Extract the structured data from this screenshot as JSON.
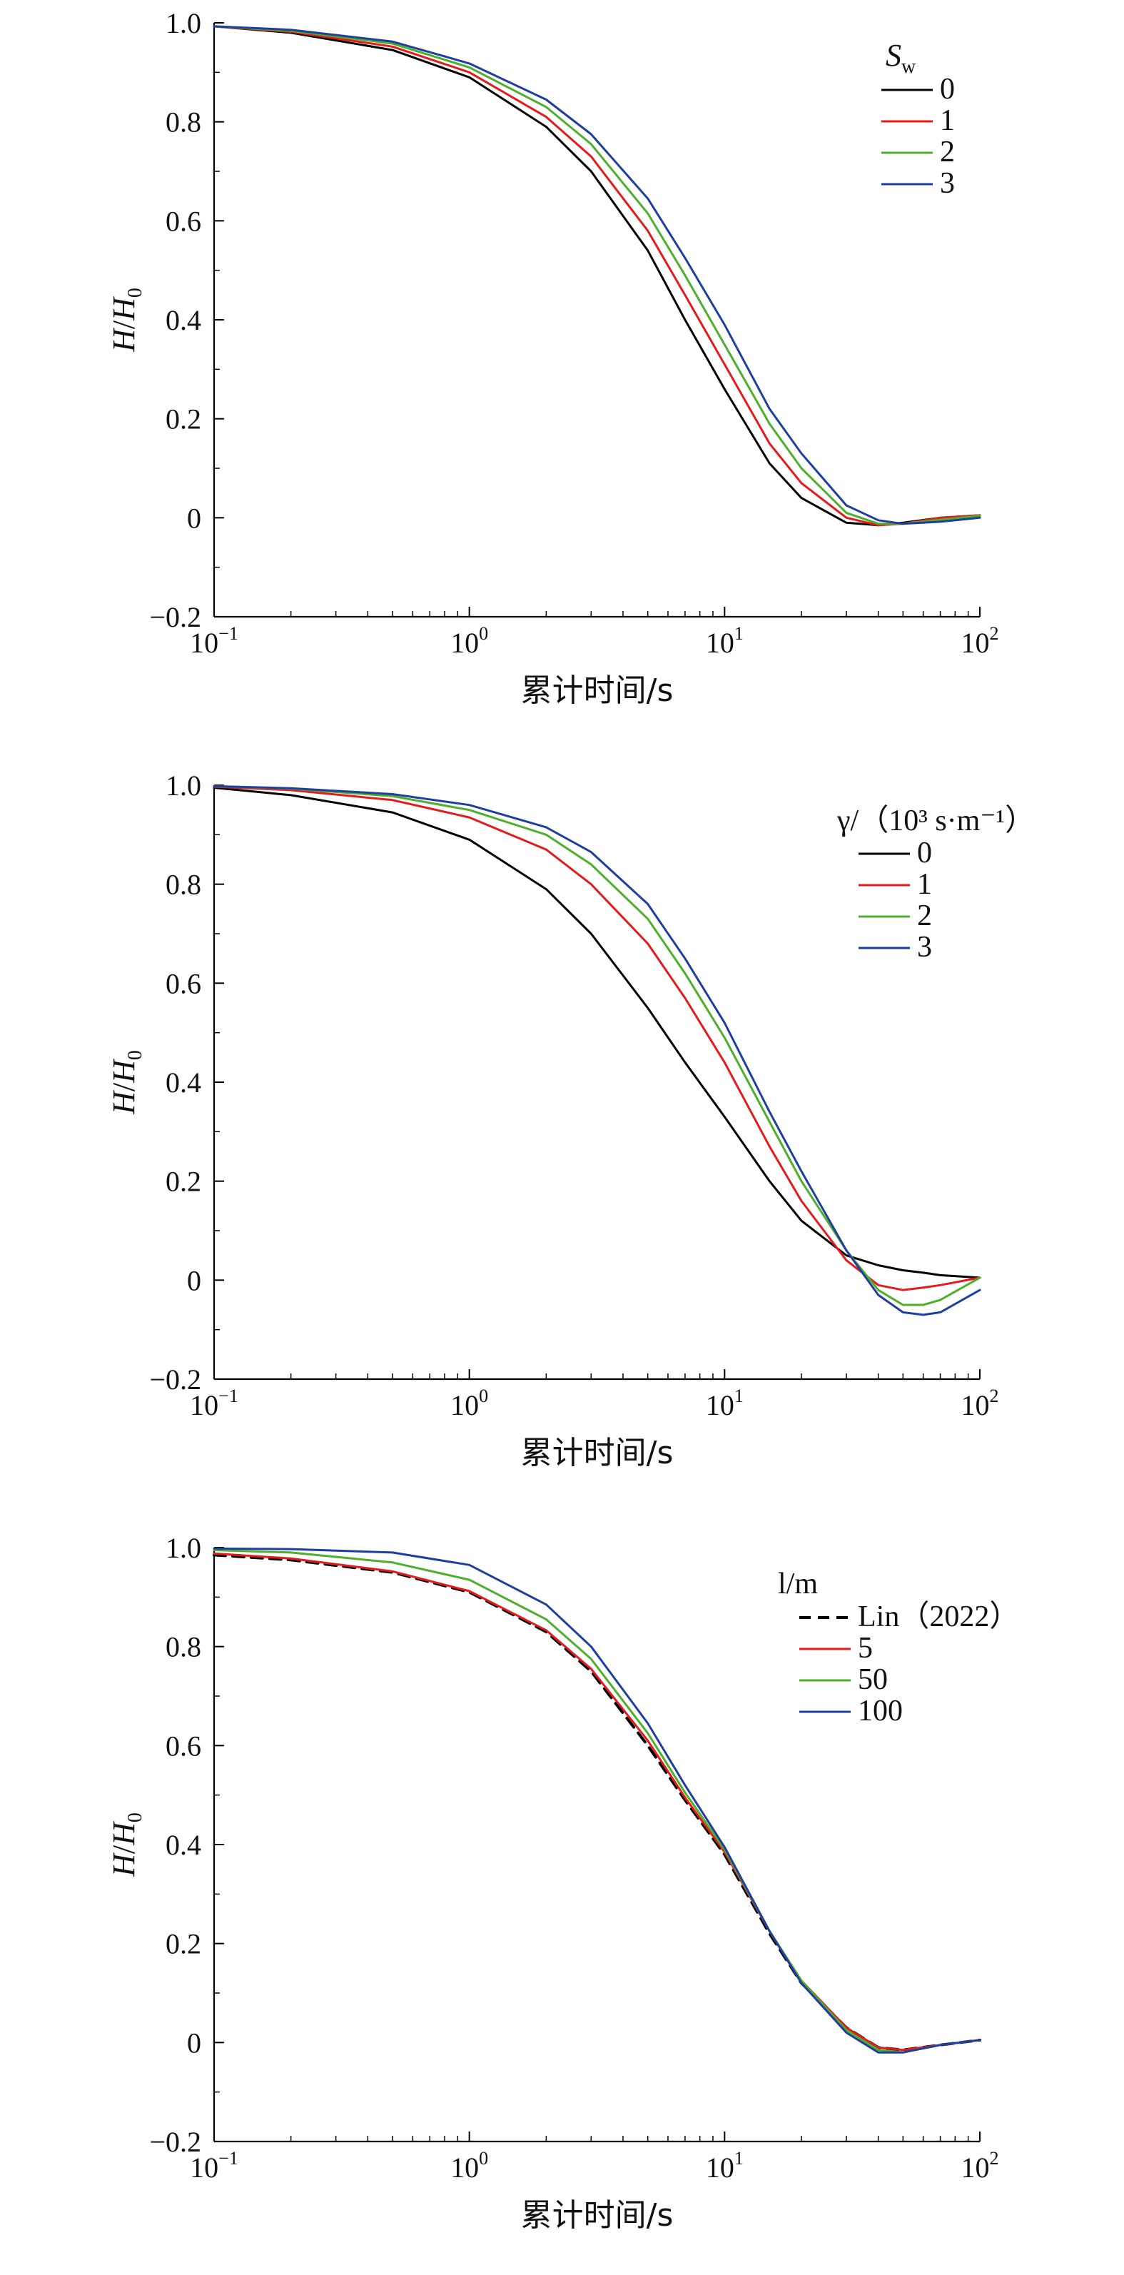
{
  "chart_data": [
    {
      "type": "line",
      "xscale": "log",
      "xlim": [
        0.1,
        100
      ],
      "ylim": [
        -0.2,
        1.0
      ],
      "xlabel": "累计时间/s",
      "ylabel": {
        "base": "H",
        "sep": "/",
        "sub_base": "H",
        "sub": "0"
      },
      "xticks": [
        {
          "value": 0.1,
          "base": "10",
          "exp": "−1"
        },
        {
          "value": 1,
          "base": "10",
          "exp": "0"
        },
        {
          "value": 10,
          "base": "10",
          "exp": "1"
        },
        {
          "value": 100,
          "base": "10",
          "exp": "2"
        }
      ],
      "yticks": [
        "−0.2",
        "0",
        "0.2",
        "0.4",
        "0.6",
        "0.8",
        "1.0"
      ],
      "legend": {
        "placement": "top-right",
        "title": {
          "base": "S",
          "sub": "w"
        },
        "entries": [
          "0",
          "1",
          "2",
          "3"
        ]
      },
      "x": [
        0.1,
        0.2,
        0.5,
        1,
        2,
        3,
        5,
        7,
        10,
        15,
        20,
        30,
        40,
        50,
        70,
        100
      ],
      "series": [
        {
          "name": "0",
          "color": "#000000",
          "dash": "solid",
          "values": [
            0.993,
            0.98,
            0.945,
            0.89,
            0.79,
            0.7,
            0.54,
            0.4,
            0.26,
            0.11,
            0.04,
            -0.01,
            -0.015,
            -0.01,
            0.0,
            0.005
          ]
        },
        {
          "name": "1",
          "color": "#e41a1c",
          "dash": "solid",
          "values": [
            0.993,
            0.982,
            0.952,
            0.9,
            0.81,
            0.73,
            0.58,
            0.45,
            0.31,
            0.15,
            0.07,
            0.0,
            -0.015,
            -0.012,
            0.0,
            0.005
          ]
        },
        {
          "name": "2",
          "color": "#4daf2a",
          "dash": "solid",
          "values": [
            0.993,
            0.984,
            0.958,
            0.91,
            0.83,
            0.755,
            0.615,
            0.49,
            0.35,
            0.19,
            0.1,
            0.01,
            -0.012,
            -0.012,
            -0.004,
            0.004
          ]
        },
        {
          "name": "3",
          "color": "#1f3fa0",
          "dash": "solid",
          "values": [
            0.993,
            0.986,
            0.962,
            0.918,
            0.845,
            0.775,
            0.645,
            0.525,
            0.39,
            0.22,
            0.13,
            0.025,
            -0.005,
            -0.012,
            -0.008,
            0.0
          ]
        }
      ]
    },
    {
      "type": "line",
      "xscale": "log",
      "xlim": [
        0.1,
        100
      ],
      "ylim": [
        -0.2,
        1.0
      ],
      "xlabel": "累计时间/s",
      "ylabel": {
        "base": "H",
        "sep": "/",
        "sub_base": "H",
        "sub": "0"
      },
      "xticks": [
        {
          "value": 0.1,
          "base": "10",
          "exp": "−1"
        },
        {
          "value": 1,
          "base": "10",
          "exp": "0"
        },
        {
          "value": 10,
          "base": "10",
          "exp": "1"
        },
        {
          "value": 100,
          "base": "10",
          "exp": "2"
        }
      ],
      "yticks": [
        "−0.2",
        "0",
        "0.2",
        "0.4",
        "0.6",
        "0.8",
        "1.0"
      ],
      "legend": {
        "placement": "top-right",
        "title": {
          "text": "γ/（10³ s·m⁻¹）"
        },
        "entries": [
          "0",
          "1",
          "2",
          "3"
        ]
      },
      "x": [
        0.1,
        0.2,
        0.5,
        1,
        2,
        3,
        5,
        7,
        10,
        15,
        20,
        30,
        40,
        50,
        60,
        70,
        100
      ],
      "series": [
        {
          "name": "0",
          "color": "#000000",
          "dash": "solid",
          "values": [
            0.995,
            0.98,
            0.945,
            0.89,
            0.79,
            0.7,
            0.55,
            0.44,
            0.33,
            0.2,
            0.12,
            0.05,
            0.03,
            0.02,
            0.015,
            0.01,
            0.005
          ]
        },
        {
          "name": "1",
          "color": "#e41a1c",
          "dash": "solid",
          "values": [
            0.997,
            0.99,
            0.97,
            0.935,
            0.87,
            0.8,
            0.68,
            0.57,
            0.44,
            0.27,
            0.16,
            0.04,
            -0.01,
            -0.02,
            -0.015,
            -0.01,
            0.005
          ]
        },
        {
          "name": "2",
          "color": "#4daf2a",
          "dash": "solid",
          "values": [
            0.998,
            0.993,
            0.978,
            0.95,
            0.9,
            0.84,
            0.73,
            0.62,
            0.49,
            0.32,
            0.2,
            0.06,
            -0.02,
            -0.05,
            -0.05,
            -0.04,
            0.005
          ]
        },
        {
          "name": "3",
          "color": "#1f3fa0",
          "dash": "solid",
          "values": [
            0.998,
            0.994,
            0.982,
            0.96,
            0.915,
            0.865,
            0.76,
            0.65,
            0.52,
            0.34,
            0.22,
            0.06,
            -0.03,
            -0.065,
            -0.07,
            -0.065,
            -0.02
          ]
        }
      ]
    },
    {
      "type": "line",
      "xscale": "log",
      "xlim": [
        0.1,
        100
      ],
      "ylim": [
        -0.2,
        1.0
      ],
      "xlabel": "累计时间/s",
      "ylabel": {
        "base": "H",
        "sep": "/",
        "sub_base": "H",
        "sub": "0"
      },
      "xticks": [
        {
          "value": 0.1,
          "base": "10",
          "exp": "−1"
        },
        {
          "value": 1,
          "base": "10",
          "exp": "0"
        },
        {
          "value": 10,
          "base": "10",
          "exp": "1"
        },
        {
          "value": 100,
          "base": "10",
          "exp": "2"
        }
      ],
      "yticks": [
        "−0.2",
        "0",
        "0.2",
        "0.4",
        "0.6",
        "0.8",
        "1.0"
      ],
      "legend": {
        "placement": "top-right",
        "title": {
          "text": "l/m"
        },
        "entries": [
          "Lin（2022）",
          "5",
          "50",
          "100"
        ]
      },
      "x": [
        0.1,
        0.2,
        0.5,
        1,
        2,
        3,
        5,
        7,
        10,
        15,
        20,
        30,
        40,
        50,
        70,
        100
      ],
      "series": [
        {
          "name": "Lin（2022）",
          "color": "#000000",
          "dash": "dashed",
          "values": [
            0.985,
            0.975,
            0.95,
            0.91,
            0.83,
            0.75,
            0.6,
            0.49,
            0.38,
            0.22,
            0.12,
            0.03,
            -0.01,
            -0.015,
            -0.005,
            0.005
          ]
        },
        {
          "name": "5",
          "color": "#e41a1c",
          "dash": "solid",
          "values": [
            0.988,
            0.978,
            0.952,
            0.912,
            0.833,
            0.755,
            0.61,
            0.495,
            0.385,
            0.225,
            0.125,
            0.03,
            -0.01,
            -0.015,
            -0.005,
            0.005
          ]
        },
        {
          "name": "50",
          "color": "#4daf2a",
          "dash": "solid",
          "values": [
            0.995,
            0.99,
            0.97,
            0.935,
            0.855,
            0.775,
            0.625,
            0.505,
            0.39,
            0.225,
            0.125,
            0.025,
            -0.015,
            -0.02,
            -0.005,
            0.005
          ]
        },
        {
          "name": "100",
          "color": "#1f3fa0",
          "dash": "solid",
          "values": [
            0.998,
            0.997,
            0.99,
            0.965,
            0.885,
            0.8,
            0.645,
            0.52,
            0.395,
            0.225,
            0.12,
            0.02,
            -0.02,
            -0.02,
            -0.005,
            0.005
          ]
        }
      ]
    }
  ]
}
